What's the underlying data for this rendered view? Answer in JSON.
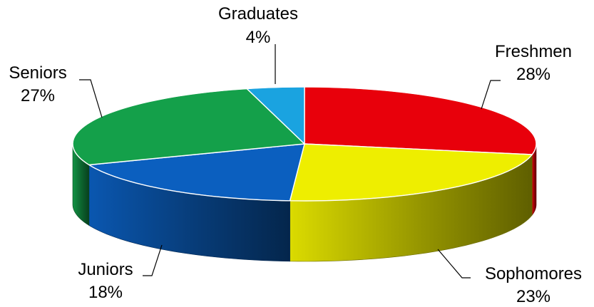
{
  "chart_data": {
    "type": "pie",
    "style": "3d-exploded-none",
    "categories": [
      "Freshmen",
      "Sophomores",
      "Juniors",
      "Seniors",
      "Graduates"
    ],
    "values": [
      28,
      23,
      18,
      27,
      4
    ],
    "unit": "%",
    "value_labels": [
      "28%",
      "23%",
      "18%",
      "27%",
      "4%"
    ],
    "colors": [
      "#e8000b",
      "#eeee00",
      "#0b5fbf",
      "#14a04a",
      "#1aa3e0"
    ],
    "legend": "none",
    "start_angle_deg": 90,
    "direction": "clockwise"
  }
}
